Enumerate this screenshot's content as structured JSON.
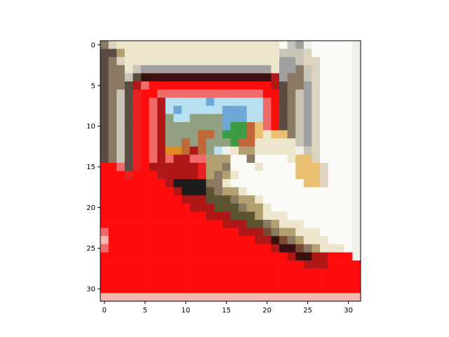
{
  "chart_data": {
    "type": "heatmap",
    "rows": 32,
    "cols": 32,
    "x_ticks": [
      0,
      5,
      10,
      15,
      20,
      25,
      30
    ],
    "y_ticks": [
      0,
      5,
      10,
      15,
      20,
      25,
      30
    ],
    "xlim": [
      -0.5,
      31.5
    ],
    "ylim": [
      31.5,
      -0.5
    ],
    "origin": "upper",
    "grid": false,
    "palette": {
      "k": "#1e1c1b",
      "d": "#5a4c42",
      "D": "#3d1010",
      "m": "#8a7a64",
      "t": "#b2a070",
      "c": "#ede6cc",
      "w": "#fafaf6",
      "g": "#c8c4b8",
      "s": "#a0a0a0",
      "q": "#dcd4c0",
      "R": "#ff0d0d",
      "r": "#e82020",
      "x": "#b01818",
      "p": "#f06a6a",
      "P": "#f4b8b0",
      "B": "#6ea8d8",
      "L": "#b8e0f0",
      "G": "#3c9c44",
      "o": "#e08a20",
      "y": "#e8c070",
      "b": "#7a4a30",
      "n": "#c0683a",
      "v": "#90a080",
      "e": "#5c5430",
      "f": "#f0f0e8"
    },
    "pixels": [
      "mqccccccccccccccccccccwgsfwwwwwf",
      "ddtcccccccccccccccccccgggqwwwwwf",
      "dmqcccccccccccccccccccssgqqwwwwf",
      "dmmcgsssssssssssssssscssmgqwwwwf",
      "dmmgdDDDDDDDDDDDDDDDDxsmmgqwwwwf",
      "dmmdxpRRRRRRRRRRRRRRRxdmmsqwwwwf",
      "dmgdrRRpppppppppppppRRdmgsqwwwwf",
      "dmgdrRpxLLLLLBLLLLLLpRdmgsqwwwwf",
      "dmgdrRpxLBLLLLLBBBLLpRdmgsqwwwwf",
      "dmgdrRpxvLLvvvvBBBLLpRdmgsqwwwwf",
      "dmgdrRpxvvvvvvvBGGnypRdmgsqwwwwf",
      "dmgdrRpxvvvvnnvGGGnycyymgsqwwwwf",
      "dmgdrRpxvvnvnvvvGnncccccgsqwwwwf",
      "dmgdrRpxoonxnvLfcttcccccfgqwwwwf",
      "dmgdrRpxpxxpptttwwmwwwwcyyqwwwwf",
      "RRpdrRxxxxxxrttmwwwcwwwwyyyqwwwf",
      "RRRrRRRxxxxxrtmtcwwwwwwwyyyqwwwf",
      "RRRRRRRRxkkkkmmcwwwwwwwwwyyqwwwf",
      "RRRRRRRRRxkkkemttcwwwwwwwwwwwwwf",
      "RRRRRRRRRRxxxeeemttcwwwwwwwwwwwf",
      "RRRRRRRRRRRxxxeeemttcwwwwwwwwwwf",
      "RRRRRRRRRRRRRxxxeeetcccwwwwwwwwf",
      "RRRRRRRRRRRRRRRxxxeemtcccwwwwwwf",
      "pRRRRRRRRRRRRRRRRxxxbmttcccwwwwf",
      "PRRRRRRRRRRRRRRRRRRxxDbmtcccwwwf",
      "pRRRRRRRRRRRRRRRRRRRRxDDbmtcccwf",
      "RRRRRRRRRRRRRRRRRRRRRRRxDDxxRRRf",
      "RRRRRRRRRRRRRRRRRRRRRRRRRxxxRRRR",
      "RRRRRRRRRRRRRRRRRRRRRRRRRRRRRRRR",
      "RRRRRRRRRRRRRRRRRRRRRRRRRRRRRRRR",
      "RRRRRRRRRRRRRRRRRRRRRRRRRRRRRRRR",
      "PPPPPPPPPPPPPPPPPPPPPPPPPPPPPPPP"
    ]
  }
}
